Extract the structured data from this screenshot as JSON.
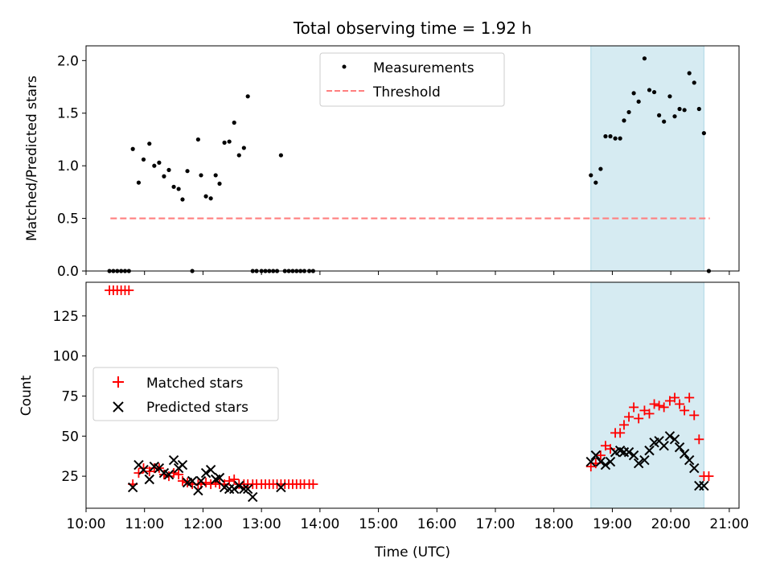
{
  "title": "Total observing time = 1.92 h",
  "xlabel": "Time (UTC)",
  "x_ticks": [
    "10:00",
    "11:00",
    "12:00",
    "13:00",
    "14:00",
    "15:00",
    "16:00",
    "17:00",
    "18:00",
    "19:00",
    "20:00",
    "21:00"
  ],
  "colors": {
    "measurements": "#000000",
    "threshold": "#ff7f7f",
    "matched": "#ff0000",
    "predicted": "#000000",
    "span_fill": "#add8e6"
  },
  "chart_data": [
    {
      "type": "scatter",
      "ylabel": "Matched/Predicted stars",
      "xlim": [
        "10:00",
        "21:10"
      ],
      "ylim": [
        0,
        2.14
      ],
      "y_ticks": [
        "0.0",
        "0.5",
        "1.0",
        "1.5",
        "2.0"
      ],
      "legend_position": "top-center",
      "highlight_span": [
        "18:38",
        "20:34"
      ],
      "threshold": {
        "name": "Threshold",
        "y": 0.5,
        "x_range": [
          "10:25",
          "20:40"
        ]
      },
      "series": [
        {
          "name": "Measurements",
          "x": [
            "10:24",
            "10:28",
            "10:32",
            "10:36",
            "10:40",
            "10:44",
            "10:48",
            "10:54",
            "10:59",
            "11:05",
            "11:10",
            "11:15",
            "11:20",
            "11:25",
            "11:30",
            "11:35",
            "11:39",
            "11:44",
            "11:49",
            "11:55",
            "11:58",
            "12:03",
            "12:08",
            "12:13",
            "12:17",
            "12:22",
            "12:27",
            "12:32",
            "12:37",
            "12:42",
            "12:46",
            "12:51",
            "12:55",
            "13:00",
            "13:04",
            "13:08",
            "13:12",
            "13:16",
            "13:20",
            "13:24",
            "13:28",
            "13:32",
            "13:36",
            "13:40",
            "13:44",
            "13:49",
            "13:53",
            "18:38",
            "18:43",
            "18:48",
            "18:53",
            "18:58",
            "19:03",
            "19:08",
            "19:12",
            "19:17",
            "19:22",
            "19:27",
            "19:33",
            "19:38",
            "19:43",
            "19:48",
            "19:53",
            "19:59",
            "20:04",
            "20:09",
            "20:14",
            "20:19",
            "20:24",
            "20:29",
            "20:34",
            "20:39"
          ],
          "y": [
            0,
            0,
            0,
            0,
            0,
            0,
            1.16,
            0.84,
            1.06,
            1.21,
            1.0,
            1.03,
            0.9,
            0.96,
            0.8,
            0.78,
            0.68,
            0.95,
            0,
            1.25,
            0.91,
            0.71,
            0.69,
            0.91,
            0.83,
            1.22,
            1.23,
            1.41,
            1.1,
            1.17,
            1.66,
            0,
            0,
            0,
            0,
            0,
            0,
            0,
            1.1,
            0,
            0,
            0,
            0,
            0,
            0,
            0,
            0,
            0.91,
            0.84,
            0.97,
            1.28,
            1.28,
            1.26,
            1.26,
            1.43,
            1.51,
            1.69,
            1.61,
            2.02,
            1.72,
            1.7,
            1.48,
            1.42,
            1.66,
            1.47,
            1.54,
            1.53,
            1.88,
            1.79,
            1.54,
            1.31,
            0
          ]
        }
      ]
    },
    {
      "type": "scatter",
      "ylabel": "Count",
      "xlabel": "Time (UTC)",
      "xlim": [
        "10:00",
        "21:10"
      ],
      "ylim": [
        5,
        146
      ],
      "y_ticks": [
        "25",
        "50",
        "75",
        "100",
        "125"
      ],
      "legend_position": "center-left",
      "highlight_span": [
        "18:38",
        "20:34"
      ],
      "series": [
        {
          "name": "Matched stars",
          "marker": "plus",
          "x": [
            "10:24",
            "10:28",
            "10:32",
            "10:36",
            "10:40",
            "10:44",
            "10:48",
            "10:54",
            "10:59",
            "11:05",
            "11:10",
            "11:15",
            "11:20",
            "11:25",
            "11:30",
            "11:35",
            "11:39",
            "11:44",
            "11:49",
            "11:55",
            "11:58",
            "12:03",
            "12:08",
            "12:13",
            "12:17",
            "12:22",
            "12:27",
            "12:32",
            "12:37",
            "12:42",
            "12:46",
            "12:51",
            "12:55",
            "13:00",
            "13:04",
            "13:08",
            "13:12",
            "13:16",
            "13:20",
            "13:24",
            "13:28",
            "13:32",
            "13:36",
            "13:40",
            "13:44",
            "13:49",
            "13:53",
            "18:38",
            "18:43",
            "18:48",
            "18:53",
            "18:58",
            "19:03",
            "19:08",
            "19:12",
            "19:17",
            "19:22",
            "19:27",
            "19:33",
            "19:38",
            "19:43",
            "19:48",
            "19:53",
            "19:59",
            "20:04",
            "20:09",
            "20:14",
            "20:19",
            "20:24",
            "20:29",
            "20:34",
            "20:39"
          ],
          "y": [
            141,
            141,
            141,
            141,
            141,
            141,
            20,
            27,
            30,
            28,
            30,
            30,
            26,
            25,
            27,
            26,
            22,
            21,
            20,
            20,
            20,
            21,
            20,
            21,
            20,
            20,
            22,
            23,
            20,
            20,
            20,
            20,
            20,
            20,
            20,
            20,
            20,
            20,
            20,
            20,
            20,
            20,
            20,
            20,
            20,
            20,
            20,
            31,
            33,
            38,
            44,
            42,
            52,
            52,
            57,
            62,
            68,
            61,
            66,
            64,
            70,
            69,
            68,
            72,
            74,
            70,
            66,
            74,
            63,
            48,
            25,
            25
          ]
        },
        {
          "name": "Predicted stars",
          "marker": "x",
          "x": [
            "10:48",
            "10:54",
            "10:59",
            "11:05",
            "11:10",
            "11:15",
            "11:20",
            "11:25",
            "11:30",
            "11:35",
            "11:39",
            "11:44",
            "11:49",
            "11:55",
            "11:58",
            "12:03",
            "12:08",
            "12:13",
            "12:17",
            "12:22",
            "12:27",
            "12:32",
            "12:37",
            "12:42",
            "12:46",
            "12:51",
            "13:20",
            "18:38",
            "18:43",
            "18:48",
            "18:53",
            "18:58",
            "19:03",
            "19:08",
            "19:12",
            "19:17",
            "19:22",
            "19:27",
            "19:33",
            "19:38",
            "19:43",
            "19:48",
            "19:53",
            "19:59",
            "20:04",
            "20:09",
            "20:14",
            "20:19",
            "20:24",
            "20:29",
            "20:34"
          ],
          "y": [
            18,
            32,
            29,
            23,
            31,
            30,
            27,
            26,
            35,
            30,
            32,
            21,
            22,
            16,
            22,
            27,
            29,
            23,
            24,
            18,
            17,
            17,
            19,
            17,
            17,
            12,
            18,
            34,
            38,
            34,
            32,
            34,
            40,
            41,
            40,
            40,
            38,
            33,
            35,
            41,
            46,
            47,
            44,
            50,
            48,
            43,
            39,
            35,
            30,
            19,
            19
          ]
        }
      ]
    }
  ],
  "top_legend": {
    "items": [
      "Measurements",
      "Threshold"
    ]
  },
  "bottom_legend": {
    "items": [
      "Matched stars",
      "Predicted stars"
    ]
  }
}
